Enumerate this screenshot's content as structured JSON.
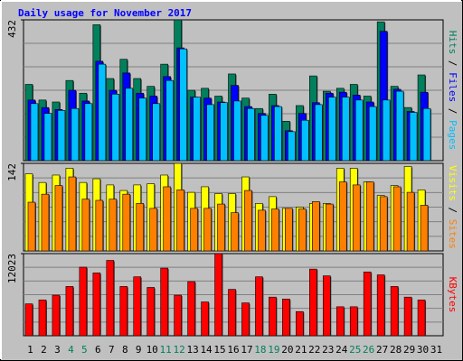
{
  "chart_data": [
    {
      "type": "bar",
      "title": "Daily usage for November 2017",
      "ylim": [
        0,
        432
      ],
      "yticks": [
        432
      ],
      "series": [
        {
          "name": "Hits",
          "color": "#00805c",
          "values": [
            234,
            186,
            180,
            246,
            207,
            417,
            252,
            311,
            252,
            228,
            296,
            432,
            216,
            222,
            198,
            266,
            192,
            160,
            204,
            121,
            169,
            260,
            213,
            222,
            234,
            198,
            426,
            228,
            163,
            263,
            null
          ]
        },
        {
          "name": "Files",
          "color": "#0000ff",
          "values": [
            186,
            163,
            157,
            216,
            183,
            305,
            216,
            269,
            207,
            198,
            258,
            346,
            195,
            192,
            180,
            231,
            166,
            145,
            169,
            92,
            145,
            178,
            207,
            210,
            201,
            180,
            397,
            219,
            151,
            210,
            null
          ]
        },
        {
          "name": "Pages",
          "color": "#00c0ff",
          "values": [
            175,
            145,
            154,
            160,
            175,
            296,
            204,
            222,
            192,
            175,
            246,
            343,
            195,
            172,
            178,
            183,
            160,
            139,
            166,
            89,
            124,
            172,
            195,
            195,
            186,
            166,
            186,
            213,
            148,
            160,
            null
          ]
        }
      ]
    },
    {
      "type": "bar",
      "ylim": [
        0,
        142
      ],
      "yticks": [
        142
      ],
      "series": [
        {
          "name": "Visits",
          "color": "#ffff00",
          "values": [
            125,
            111,
            123,
            134,
            111,
            117,
            107,
            98,
            107,
            109,
            123,
            142,
            95,
            104,
            93,
            93,
            120,
            77,
            88,
            69,
            71,
            77,
            77,
            134,
            134,
            112,
            90,
            106,
            137,
            99,
            null
          ]
        },
        {
          "name": "Sites",
          "color": "#ff8000",
          "values": [
            79,
            92,
            106,
            120,
            84,
            82,
            84,
            92,
            77,
            69,
            104,
            99,
            69,
            69,
            76,
            62,
            98,
            66,
            68,
            69,
            68,
            80,
            76,
            112,
            107,
            112,
            88,
            104,
            95,
            74,
            null
          ]
        }
      ]
    },
    {
      "type": "bar",
      "ylim": [
        0,
        12023
      ],
      "yticks": [
        12023
      ],
      "categories": [
        "1",
        "2",
        "3",
        "4",
        "5",
        "6",
        "7",
        "8",
        "9",
        "10",
        "11",
        "12",
        "13",
        "14",
        "15",
        "16",
        "17",
        "18",
        "19",
        "20",
        "21",
        "22",
        "23",
        "24",
        "25",
        "26",
        "27",
        "28",
        "29",
        "30",
        "31"
      ],
      "highlight_indices": [
        3,
        4,
        10,
        11,
        17,
        18,
        24,
        25
      ],
      "highlight_color": "#00805c",
      "series": [
        {
          "name": "KBytes",
          "color": "#ff0000",
          "values": [
            4667,
            5233,
            5940,
            7212,
            10040,
            9192,
            11030,
            7212,
            8627,
            7071,
            9899,
            5940,
            7919,
            4950,
            12023,
            6788,
            4808,
            8627,
            5657,
            5374,
            3535,
            9757,
            8768,
            4243,
            4243,
            9333,
            8910,
            7212,
            5657,
            5233,
            null
          ]
        }
      ]
    }
  ]
}
